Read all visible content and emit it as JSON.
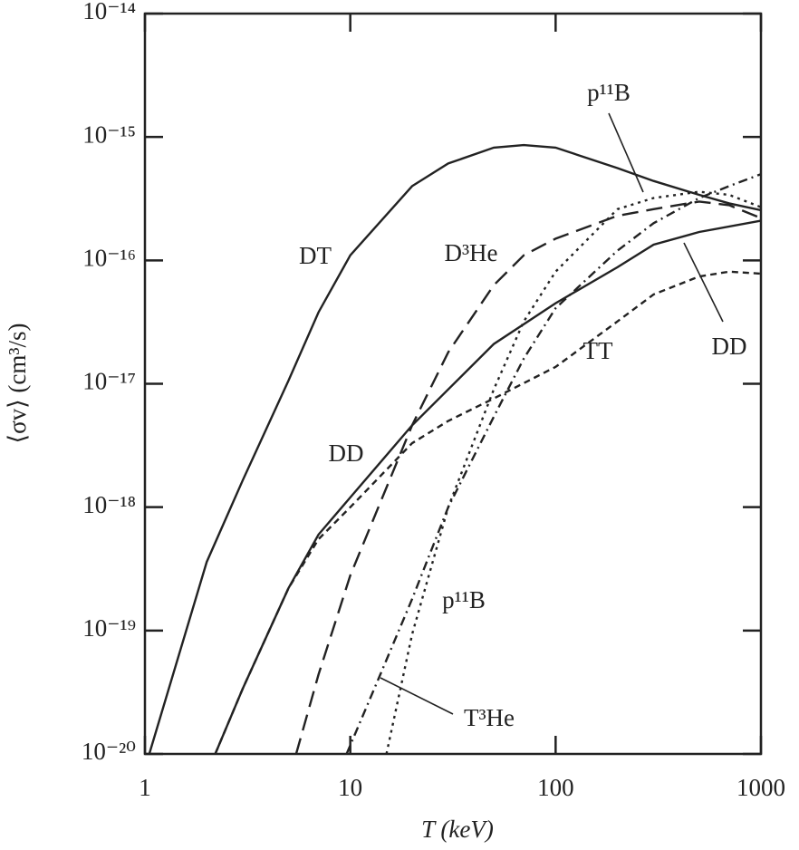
{
  "chart_data": {
    "type": "line",
    "x_label": "T (keV)",
    "y_label": "⟨σv⟩ (cm³/s)",
    "log_x": true,
    "log_y": true,
    "xlim": [
      1,
      1000
    ],
    "xticks": [
      1,
      10,
      100,
      1000
    ],
    "ylim": [
      1e-20,
      1e-14
    ],
    "yticks": [
      {
        "value": 1e-20,
        "label": "10⁻²⁰"
      },
      {
        "value": 1e-19,
        "label": "10⁻¹⁹"
      },
      {
        "value": 1e-18,
        "label": "10⁻¹⁸"
      },
      {
        "value": 1e-17,
        "label": "10⁻¹⁷"
      },
      {
        "value": 1e-16,
        "label": "10⁻¹⁶"
      },
      {
        "value": 1e-15,
        "label": "10⁻¹⁵"
      },
      {
        "value": 1e-14,
        "label": "10⁻¹⁴"
      }
    ],
    "series": [
      {
        "name": "DT",
        "color": "#222222",
        "style": "solid",
        "x": [
          1.05,
          2,
          3,
          5,
          7,
          10,
          20,
          30,
          50,
          70,
          100,
          200,
          300,
          500,
          700,
          1000
        ],
        "values": [
          1e-20,
          3.6e-19,
          1.66e-18,
          1.06e-17,
          3.8e-17,
          1.1e-16,
          4e-16,
          6.1e-16,
          8.2e-16,
          8.6e-16,
          8.2e-16,
          5.6e-16,
          4.4e-16,
          3.4e-16,
          2.9e-16,
          2.55e-16
        ]
      },
      {
        "name": "DD",
        "color": "#222222",
        "style": "solid",
        "x": [
          2.2,
          3,
          5,
          7,
          10,
          20,
          30,
          50,
          100,
          200,
          300,
          500,
          1000
        ],
        "values": [
          1e-20,
          3.4e-20,
          2.2e-19,
          6e-19,
          1.2e-18,
          4.6e-18,
          9e-18,
          2.1e-17,
          4.5e-17,
          8.8e-17,
          1.34e-16,
          1.7e-16,
          2.1e-16
        ]
      },
      {
        "name": "D³He",
        "color": "#222222",
        "style": "long-dash",
        "x": [
          5.45,
          7,
          10,
          20,
          30,
          50,
          70,
          100,
          200,
          300,
          500,
          700,
          1000
        ],
        "values": [
          1e-20,
          4.4e-20,
          2.8e-19,
          4.6e-18,
          1.8e-17,
          6.3e-17,
          1.1e-16,
          1.5e-16,
          2.3e-16,
          2.6e-16,
          3e-16,
          2.8e-16,
          2.2e-16
        ]
      },
      {
        "name": "TT",
        "color": "#222222",
        "style": "short-dash",
        "x": [
          2.2,
          3,
          5,
          7,
          10,
          20,
          30,
          50,
          100,
          200,
          300,
          500,
          700,
          1000
        ],
        "values": [
          1e-20,
          3.4e-20,
          2.2e-19,
          5.5e-19,
          1e-18,
          3.3e-18,
          5e-18,
          7.6e-18,
          1.37e-17,
          3.2e-17,
          5.3e-17,
          7.4e-17,
          8.1e-17,
          7.8e-17
        ]
      },
      {
        "name": "p¹¹B",
        "color": "#222222",
        "style": "dot",
        "x": [
          15,
          20,
          30,
          50,
          70,
          100,
          200,
          300,
          500,
          700,
          1000
        ],
        "values": [
          1e-20,
          9.3e-20,
          1e-18,
          9e-18,
          3.2e-17,
          8.1e-17,
          2.6e-16,
          3.2e-16,
          3.6e-16,
          3.4e-16,
          2.7e-16
        ]
      },
      {
        "name": "T³He",
        "color": "#222222",
        "style": "dash-dot",
        "x": [
          9.6,
          14,
          20,
          30,
          50,
          70,
          100,
          200,
          300,
          500,
          700,
          1000
        ],
        "values": [
          1e-20,
          4.4e-20,
          1.8e-19,
          1e-18,
          5.4e-18,
          1.6e-17,
          4.1e-17,
          1.2e-16,
          2e-16,
          3.2e-16,
          4e-16,
          5e-16
        ]
      }
    ],
    "annotations": [
      "p¹¹B",
      "DD"
    ]
  }
}
